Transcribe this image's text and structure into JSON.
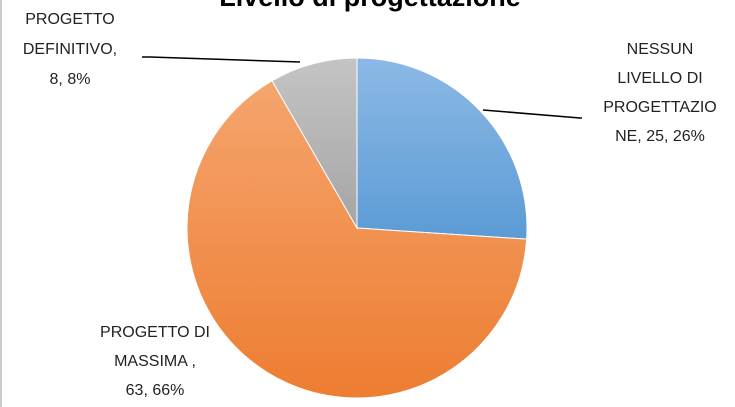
{
  "chart_data": {
    "type": "pie",
    "title": "Livello di progettazione",
    "values": [
      25,
      63,
      8
    ],
    "value_labels": [
      [
        "NESSUN",
        "LIVELLO DI",
        "PROGETTAZIO",
        "NE, 25, 26%"
      ],
      [
        "PROGETTO DI",
        "MASSIMA ,",
        "63, 66%"
      ],
      [
        "PROGETTO",
        "DEFINITIVO,",
        "8, 8%"
      ]
    ],
    "colors": [
      "#5b9bd5",
      "#ed7d31",
      "#a5a5a5"
    ]
  }
}
